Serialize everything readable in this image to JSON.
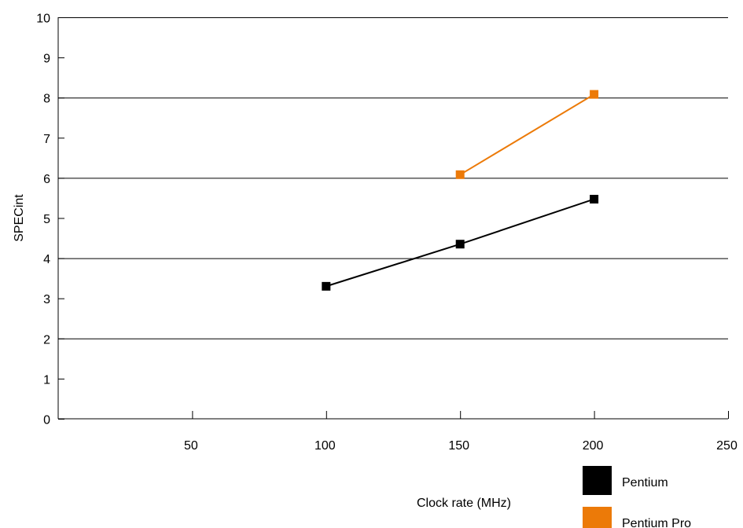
{
  "chart_data": {
    "type": "line",
    "title": "",
    "xlabel": "Clock rate (MHz)",
    "ylabel": "SPECint",
    "xlim": [
      0,
      250
    ],
    "ylim": [
      0,
      10
    ],
    "x_ticks": [
      50,
      100,
      150,
      200,
      250
    ],
    "y_ticks": [
      0,
      1,
      2,
      3,
      4,
      5,
      6,
      7,
      8,
      9,
      10
    ],
    "grid": "horizontal",
    "legend_position": "bottom-right",
    "series": [
      {
        "name": "Pentium",
        "color": "#000000",
        "points": [
          {
            "x": 100,
            "y": 3.3
          },
          {
            "x": 150,
            "y": 4.35
          },
          {
            "x": 200,
            "y": 5.47
          }
        ]
      },
      {
        "name": "Pentium Pro",
        "color": "#ec7a08",
        "points": [
          {
            "x": 150,
            "y": 6.08
          },
          {
            "x": 200,
            "y": 8.08
          }
        ]
      }
    ]
  }
}
